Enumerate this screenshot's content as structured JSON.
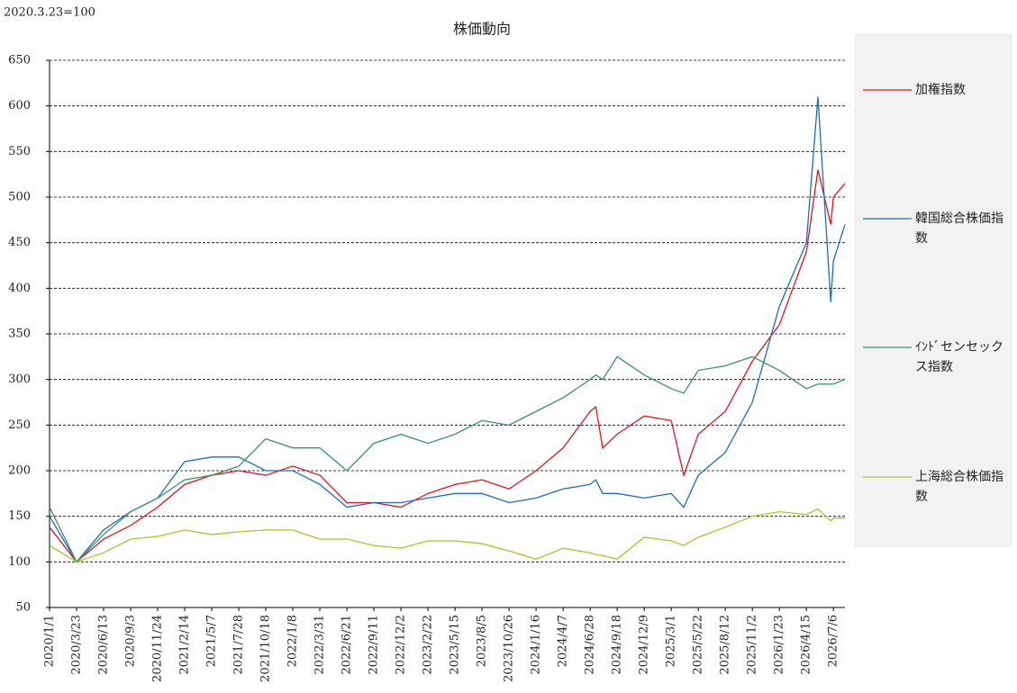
{
  "chart_data": {
    "type": "line",
    "title": "株価動向",
    "subtitle": "2020.3.23=100",
    "x": [
      "2020/1/1",
      "2020/3/23",
      "2020/6/13",
      "2020/9/3",
      "2020/11/24",
      "2021/2/14",
      "2021/5/7",
      "2021/7/28",
      "2021/10/18",
      "2022/1/8",
      "2022/3/31",
      "2022/6/21",
      "2022/9/11",
      "2022/12/2",
      "2023/2/22",
      "2023/5/15",
      "2023/8/5",
      "2023/10/26",
      "2024/1/16",
      "2024/4/7",
      "2024/6/28",
      "2024/7/15",
      "2024/8/5",
      "2024/9/18",
      "2024/12/9",
      "2025/3/1",
      "2025/4/8",
      "2025/5/22",
      "2025/8/12",
      "2025/11/2",
      "2026/1/23",
      "2026/4/15",
      "2026/5/20",
      "2026/6/28",
      "2026/7/6",
      "2026/8/10"
    ],
    "series": [
      {
        "name": "加権指数",
        "color": "#e3141d",
        "values": [
          138,
          100,
          125,
          140,
          160,
          185,
          195,
          200,
          195,
          205,
          195,
          165,
          165,
          160,
          175,
          185,
          190,
          180,
          200,
          225,
          265,
          270,
          225,
          240,
          260,
          255,
          195,
          240,
          265,
          320,
          360,
          440,
          530,
          470,
          500,
          515
        ]
      },
      {
        "name": "韓国総合株価指数",
        "color": "#1b6fb8",
        "values": [
          150,
          100,
          135,
          155,
          170,
          210,
          215,
          215,
          200,
          200,
          185,
          160,
          165,
          165,
          170,
          175,
          175,
          165,
          170,
          180,
          185,
          190,
          175,
          175,
          170,
          175,
          160,
          195,
          220,
          275,
          380,
          450,
          610,
          385,
          430,
          470
        ]
      },
      {
        "name": "ｲﾝﾄﾞセンセックス指数",
        "color": "#3a9466",
        "values": [
          160,
          100,
          130,
          155,
          170,
          190,
          195,
          205,
          235,
          225,
          225,
          200,
          230,
          240,
          230,
          240,
          255,
          250,
          265,
          280,
          300,
          305,
          300,
          325,
          305,
          290,
          285,
          310,
          315,
          325,
          310,
          290,
          295,
          295,
          295,
          300
        ]
      },
      {
        "name": "上海総合株価指数",
        "color": "#a6c820",
        "values": [
          118,
          100,
          110,
          125,
          128,
          135,
          130,
          133,
          135,
          135,
          125,
          125,
          118,
          115,
          123,
          123,
          120,
          112,
          103,
          115,
          110,
          108,
          107,
          103,
          127,
          123,
          118,
          127,
          138,
          150,
          155,
          152,
          158,
          145,
          148,
          148
        ]
      }
    ],
    "xlim": [
      "2020/1/1",
      "2026/8/10"
    ],
    "xticks": [
      "2020/1/1",
      "2020/3/23",
      "2020/6/13",
      "2020/9/3",
      "2020/11/24",
      "2021/2/14",
      "2021/5/7",
      "2021/7/28",
      "2021/10/18",
      "2022/1/8",
      "2022/3/31",
      "2022/6/21",
      "2022/9/11",
      "2022/12/2",
      "2023/2/22",
      "2023/5/15",
      "2023/8/5",
      "2023/10/26",
      "2024/1/16",
      "2024/4/7",
      "2024/6/28",
      "2024/9/18",
      "2024/12/9",
      "2025/3/1",
      "2025/5/22",
      "2025/8/12",
      "2025/11/2",
      "2026/1/23",
      "2026/4/15",
      "2026/7/6"
    ],
    "ylim": [
      50,
      650
    ],
    "yticks": [
      50,
      100,
      150,
      200,
      250,
      300,
      350,
      400,
      450,
      500,
      550,
      600,
      650
    ],
    "grid": true
  }
}
